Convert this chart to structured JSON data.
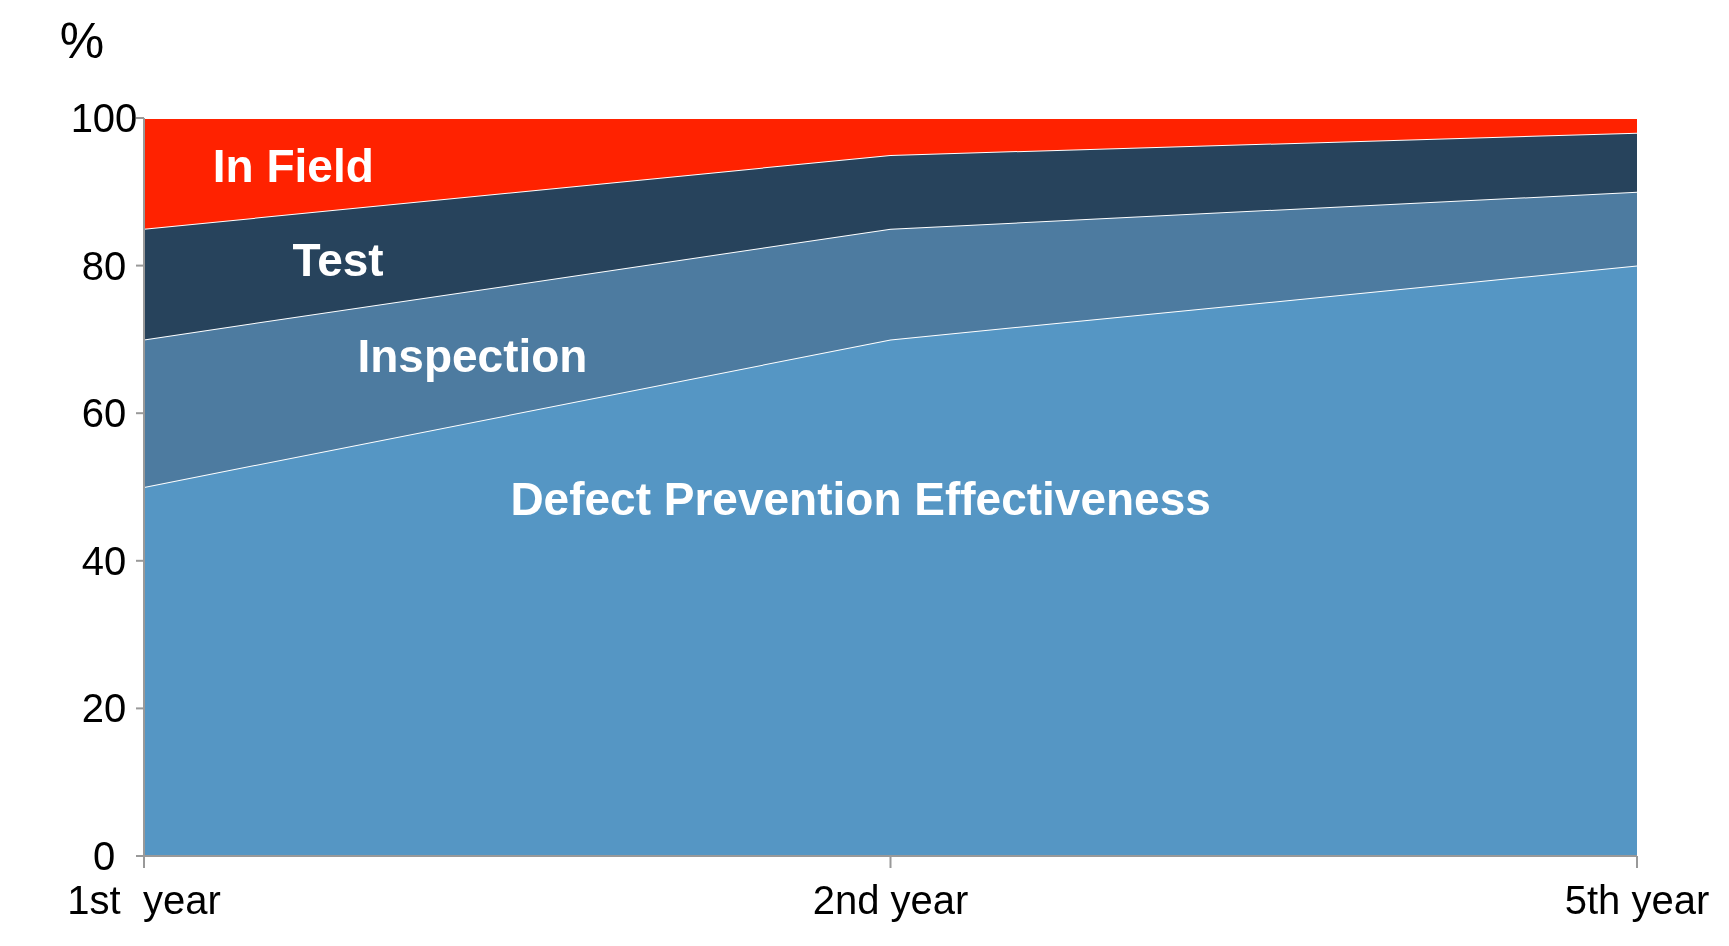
{
  "chart_data": {
    "type": "area",
    "stacked": true,
    "ylabel": "%",
    "categories": [
      "1st  year",
      "2nd year",
      "5th year"
    ],
    "series": [
      {
        "name": "Defect Prevention Effectiveness",
        "color": "#5596c4",
        "values": [
          50,
          70,
          80
        ]
      },
      {
        "name": "Inspection",
        "color": "#4d7ba0",
        "values": [
          20,
          15,
          10
        ]
      },
      {
        "name": "Test",
        "color": "#27435c",
        "values": [
          15,
          10,
          8
        ]
      },
      {
        "name": "In Field",
        "color": "#ff2200",
        "values": [
          15,
          5,
          2
        ]
      }
    ],
    "ylim": [
      0,
      100
    ],
    "yticks": [
      0,
      20,
      40,
      60,
      80,
      100
    ]
  }
}
